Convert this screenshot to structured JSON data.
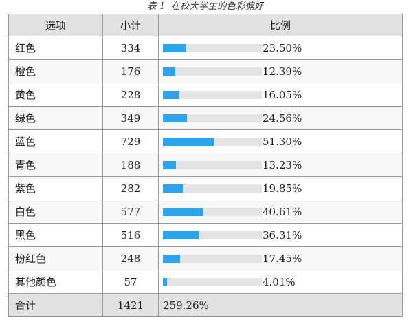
{
  "caption": {
    "prefix": "表",
    "number": "1",
    "title": "在校大学生的色彩偏好"
  },
  "headers": {
    "option": "选项",
    "count": "小计",
    "ratio": "比例"
  },
  "bar_color": "#2ea2ea",
  "rows": [
    {
      "option": "红色",
      "count": "334",
      "percent": "23.50%",
      "ratio": 0.235
    },
    {
      "option": "橙色",
      "count": "176",
      "percent": "12.39%",
      "ratio": 0.1239
    },
    {
      "option": "黄色",
      "count": "228",
      "percent": "16.05%",
      "ratio": 0.1605
    },
    {
      "option": "绿色",
      "count": "349",
      "percent": "24.56%",
      "ratio": 0.2456
    },
    {
      "option": "蓝色",
      "count": "729",
      "percent": "51.30%",
      "ratio": 0.513
    },
    {
      "option": "青色",
      "count": "188",
      "percent": "13.23%",
      "ratio": 0.1323
    },
    {
      "option": "紫色",
      "count": "282",
      "percent": "19.85%",
      "ratio": 0.1985
    },
    {
      "option": "白色",
      "count": "577",
      "percent": "40.61%",
      "ratio": 0.4061
    },
    {
      "option": "黑色",
      "count": "516",
      "percent": "36.31%",
      "ratio": 0.3631
    },
    {
      "option": "粉红色",
      "count": "248",
      "percent": "17.45%",
      "ratio": 0.1745
    },
    {
      "option": "其他颜色",
      "count": "57",
      "percent": "4.01%",
      "ratio": 0.0401
    }
  ],
  "total": {
    "label": "合计",
    "count": "1421",
    "percent": "259.26%"
  }
}
